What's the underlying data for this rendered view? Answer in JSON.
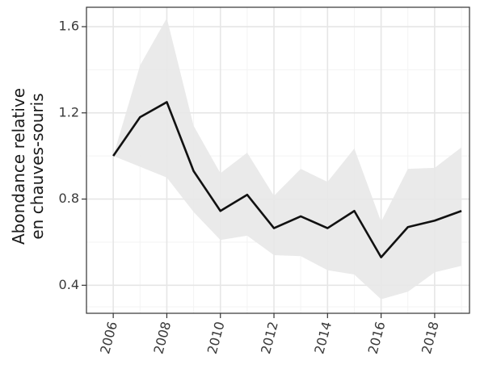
{
  "chart_data": {
    "type": "line",
    "ylabel_lines": [
      "Abondance relative",
      "en chauves-souris"
    ],
    "xlabel": "",
    "xlim": [
      2005.0,
      2019.3
    ],
    "ylim": [
      0.27,
      1.69
    ],
    "x_ticks": [
      2006,
      2008,
      2010,
      2012,
      2014,
      2016,
      2018
    ],
    "y_ticks": [
      0.4,
      0.8,
      1.2,
      1.6
    ],
    "y_tick_labels": [
      "0.4",
      "0.8",
      "1.2",
      "1.6"
    ],
    "grid": true,
    "series": [
      {
        "x": [
          2006,
          2007,
          2008,
          2009,
          2010,
          2011,
          2012,
          2013,
          2014,
          2015,
          2016,
          2017,
          2018,
          2019
        ],
        "y": [
          1.0,
          1.18,
          1.25,
          0.93,
          0.745,
          0.82,
          0.665,
          0.72,
          0.665,
          0.745,
          0.53,
          0.67,
          0.7,
          0.745
        ],
        "lower": [
          1.0,
          0.95,
          0.9,
          0.74,
          0.61,
          0.63,
          0.54,
          0.535,
          0.47,
          0.45,
          0.335,
          0.37,
          0.46,
          0.49
        ],
        "upper": [
          1.0,
          1.42,
          1.64,
          1.14,
          0.92,
          1.015,
          0.815,
          0.94,
          0.88,
          1.035,
          0.695,
          0.94,
          0.945,
          1.04
        ]
      }
    ],
    "colors": {
      "line": "#111111",
      "ribbon": "#e8e8e8",
      "grid_major": "#e6e6e6",
      "grid_minor": "#f3f3f3",
      "panel_border": "#333333"
    }
  }
}
